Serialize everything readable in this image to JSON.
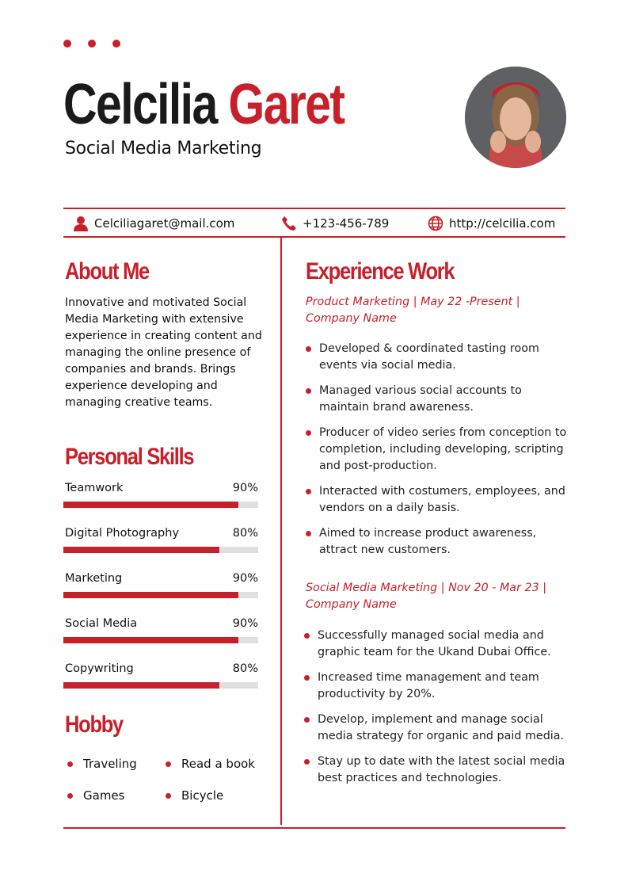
{
  "header": {
    "first_name": "Celcilia",
    "last_name": "Garet",
    "title": "Social Media Marketing",
    "accent": "#c8202a"
  },
  "contact": {
    "email": "Celciliagaret@mail.com",
    "phone": "+123-456-789",
    "website": "http://celcilia.com"
  },
  "about": {
    "heading": "About Me",
    "text": "Innovative and motivated Social Media Marketing with extensive experience in creating content and managing the online presence of companies and brands. Brings experience developing and managing creative teams."
  },
  "skills": {
    "heading": "Personal Skills",
    "items": [
      {
        "label": "Teamwork",
        "percent": "90%",
        "value": 90
      },
      {
        "label": "Digital Photography",
        "percent": "80%",
        "value": 80
      },
      {
        "label": "Marketing",
        "percent": "90%",
        "value": 90
      },
      {
        "label": "Social Media",
        "percent": "90%",
        "value": 90
      },
      {
        "label": "Copywriting",
        "percent": "80%",
        "value": 80
      }
    ]
  },
  "hobby": {
    "heading": "Hobby",
    "items": [
      "Traveling",
      "Read a book",
      "Games",
      "Bicycle"
    ]
  },
  "experience": {
    "heading": "Experience Work",
    "jobs": [
      {
        "title": "Product Marketing | May 22 -Present | Company Name",
        "bullets": [
          "Developed & coordinated tasting room events via social media.",
          "Managed various social accounts to maintain brand awareness.",
          "Producer of video series from conception to completion, including developing, scripting and post-production.",
          "Interacted with costumers, employees, and vendors on a daily basis.",
          "Aimed to increase product awareness, attract new customers."
        ]
      },
      {
        "title": "Social Media Marketing | Nov 20 - Mar 23 | Company Name",
        "bullets": [
          "Successfully managed social media and graphic team for the Ukand Dubai Office.",
          "Increased time management and team productivity by 20%.",
          "Develop, implement and manage social media strategy for organic and paid media.",
          "Stay up to date with the latest social media best practices and technologies."
        ]
      }
    ]
  }
}
